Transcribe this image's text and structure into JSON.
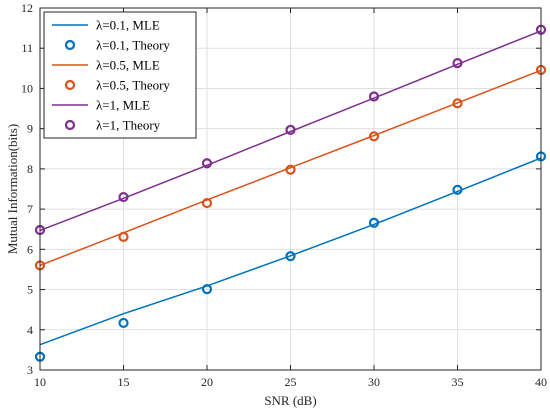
{
  "chart_data": {
    "type": "line",
    "xlabel": "SNR (dB)",
    "ylabel": "Mutual Information(bits)",
    "xlim": [
      10,
      40
    ],
    "ylim": [
      3,
      12
    ],
    "xticks": [
      10,
      15,
      20,
      25,
      30,
      35,
      40
    ],
    "yticks": [
      3,
      4,
      5,
      6,
      7,
      8,
      9,
      10,
      11,
      12
    ],
    "grid": true,
    "legend_position": "top-left",
    "x": [
      10,
      15,
      20,
      25,
      30,
      35,
      40
    ],
    "series": [
      {
        "name": "λ=0.1, MLE",
        "style": "line",
        "color": "#0072BD",
        "values": [
          3.63,
          4.4,
          5.09,
          5.84,
          6.62,
          7.44,
          8.27
        ]
      },
      {
        "name": "λ=0.1, Theory",
        "style": "marker",
        "color": "#0072BD",
        "values": [
          3.33,
          4.17,
          5.01,
          5.83,
          6.66,
          7.48,
          8.31
        ]
      },
      {
        "name": "λ=0.5, MLE",
        "style": "line",
        "color": "#D95319",
        "values": [
          5.6,
          6.41,
          7.23,
          8.03,
          8.83,
          9.64,
          10.45
        ]
      },
      {
        "name": "λ=0.5, Theory",
        "style": "marker",
        "color": "#D95319",
        "values": [
          5.6,
          6.31,
          7.15,
          7.98,
          8.81,
          9.63,
          10.46
        ]
      },
      {
        "name": "λ=1, MLE",
        "style": "line",
        "color": "#7E2F8E",
        "values": [
          6.47,
          7.27,
          8.09,
          8.93,
          9.76,
          10.6,
          11.43
        ]
      },
      {
        "name": "λ=1, Theory",
        "style": "marker",
        "color": "#7E2F8E",
        "values": [
          6.48,
          7.3,
          8.14,
          8.97,
          9.8,
          10.63,
          11.46
        ]
      }
    ]
  }
}
